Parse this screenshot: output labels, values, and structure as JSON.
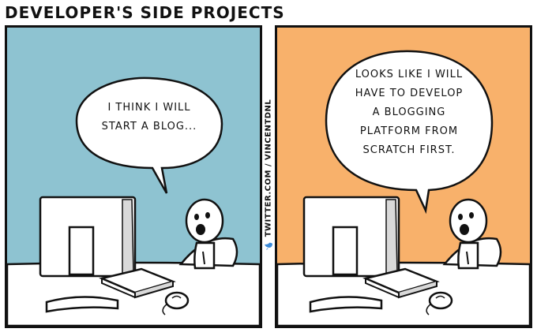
{
  "comic": {
    "title": "DEVELOPER'S SIDE PROJECTS",
    "credit": "TWITTER.COM / VINCENTDNL",
    "credit_icon": "bird-icon",
    "panels": [
      {
        "bubble_text": "I THINK I WILL\nSTART A BLOG...",
        "background": "#8ec3d1"
      },
      {
        "bubble_text": "LOOKS LIKE I WILL\nHAVE TO DEVELOP\nA BLOGGING\nPLATFORM FROM\nSCRATCH FIRST.",
        "background": "#f8b16b"
      }
    ]
  },
  "colors": {
    "ink": "#111111",
    "desk": "#ffffff",
    "bird": "#3b8ad9"
  }
}
